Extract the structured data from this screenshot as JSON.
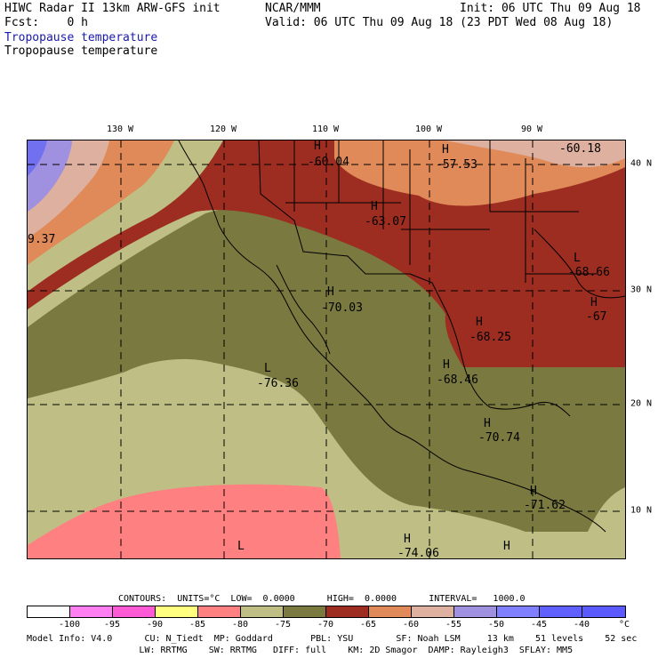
{
  "header": {
    "line1_left": "HIWC Radar II 13km ARW-GFS init",
    "line1_mid": "NCAR/MMM",
    "line1_right": "Init: 06 UTC Thu 09 Aug 18",
    "line2_left": "Fcst:    0 h",
    "line2_right": "Valid: 06 UTC Thu 09 Aug 18 (23 PDT Wed 08 Aug 18)",
    "field1": "Tropopause temperature",
    "field2": "Tropopause temperature"
  },
  "axes": {
    "lon_labels": [
      "130 W",
      "120 W",
      "110 W",
      "100 W",
      "90 W"
    ],
    "lat_labels": [
      "40 N",
      "30 N",
      "20 N",
      "10 N"
    ]
  },
  "map_labels": [
    {
      "mark": "H",
      "value": "-60.04"
    },
    {
      "mark": "H",
      "value": "-57.53"
    },
    {
      "mark": "",
      "value": "-60.18"
    },
    {
      "mark": "H",
      "value": "-63.07"
    },
    {
      "mark": "",
      "value": "9.37"
    },
    {
      "mark": "L",
      "value": "-68.66"
    },
    {
      "mark": "H",
      "value": "-70.03"
    },
    {
      "mark": "H",
      "value": "-67"
    },
    {
      "mark": "H",
      "value": "-68.25"
    },
    {
      "mark": "L",
      "value": "-76.36"
    },
    {
      "mark": "H",
      "value": "-68.46"
    },
    {
      "mark": "H",
      "value": "-70.74"
    },
    {
      "mark": "H",
      "value": "-71.62"
    },
    {
      "mark": "H",
      "value": "-74.06"
    },
    {
      "mark": "H",
      "value": ""
    },
    {
      "mark": "L",
      "value": ""
    }
  ],
  "contours_line": "CONTOURS:  UNITS=°C  LOW=  0.0000      HIGH=  0.0000      INTERVAL=   1000.0",
  "legend": {
    "unit": "°C",
    "labels": [
      "-100",
      "-95",
      "-90",
      "-85",
      "-80",
      "-75",
      "-70",
      "-65",
      "-60",
      "-55",
      "-50",
      "-45",
      "-40"
    ],
    "colors": [
      "#ffffff",
      "#ff7ff2",
      "#ff5ad6",
      "#ffff80",
      "#ff8080",
      "#bfbf85",
      "#7a7a40",
      "#9c2d20",
      "#e08a5a",
      "#ddb0a0",
      "#a090e0",
      "#8080ff",
      "#6060ff",
      "#5a5aff"
    ]
  },
  "footer": {
    "line1": "Model Info: V4.0      CU: N_Tiedt  MP: Goddard       PBL: YSU        SF: Noah LSM     13 km    51 levels    52 sec",
    "line2": "                     LW: RRTMG    SW: RRTMG   DIFF: full    KM: 2D Smagor  DAMP: Rayleigh3  SFLAY: MM5"
  }
}
